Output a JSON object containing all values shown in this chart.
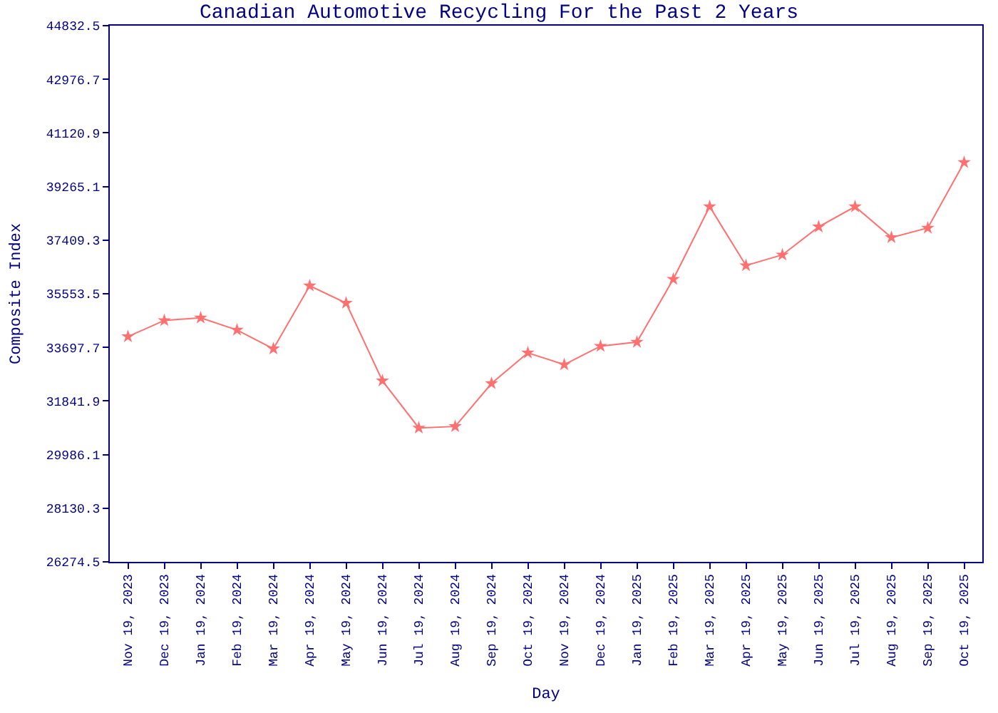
{
  "chart_data": {
    "type": "line",
    "title": "Canadian Automotive Recycling For the Past 2 Years",
    "xlabel": "Day",
    "ylabel": "Composite Index",
    "categories": [
      "Nov 19, 2023",
      "Dec 19, 2023",
      "Jan 19, 2024",
      "Feb 19, 2024",
      "Mar 19, 2024",
      "Apr 19, 2024",
      "May 19, 2024",
      "Jun 19, 2024",
      "Jul 19, 2024",
      "Aug 19, 2024",
      "Sep 19, 2024",
      "Oct 19, 2024",
      "Nov 19, 2024",
      "Dec 19, 2024",
      "Jan 19, 2025",
      "Feb 19, 2025",
      "Mar 19, 2025",
      "Apr 19, 2025",
      "May 19, 2025",
      "Jun 19, 2025",
      "Jul 19, 2025",
      "Aug 19, 2025",
      "Sep 19, 2025",
      "Oct 19, 2025"
    ],
    "series": [
      {
        "color": "#ff7070",
        "values": [
          34070,
          34630,
          34720,
          34300,
          33650,
          35830,
          35230,
          32540,
          30910,
          30960,
          32450,
          33510,
          33100,
          33740,
          33880,
          36060,
          38570,
          36530,
          36900,
          37870,
          38570,
          37500,
          37830,
          40100
        ]
      }
    ],
    "ylim": [
      26274.5,
      44832.5
    ],
    "yticks": [
      26274.5,
      28130.3,
      29986.1,
      31841.9,
      33697.7,
      35553.5,
      37409.3,
      39265.1,
      41120.9,
      42976.7,
      44832.5
    ],
    "legend": false,
    "marker": "star",
    "line_style": "solid"
  }
}
